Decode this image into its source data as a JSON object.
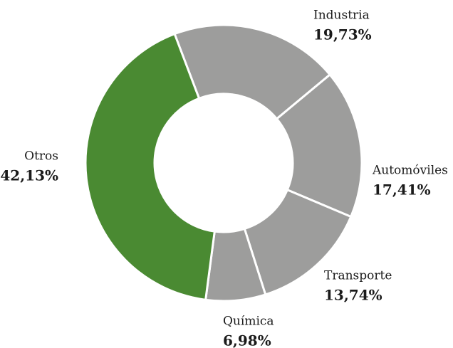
{
  "chart_data": {
    "type": "donut",
    "categories": [
      "Industria",
      "Automóviles",
      "Transporte",
      "Química",
      "Otros"
    ],
    "values": [
      19.73,
      17.41,
      13.74,
      6.98,
      42.13
    ],
    "value_labels": [
      "19,73%",
      "17,41%",
      "13,74%",
      "6,98%",
      "42,13%"
    ],
    "colors": [
      "#9d9d9c",
      "#9d9d9c",
      "#9d9d9c",
      "#9d9d9c",
      "#4a8a32"
    ]
  }
}
